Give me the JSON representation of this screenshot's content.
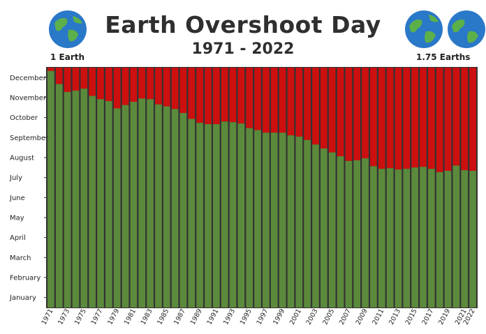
{
  "title": "Earth Overshoot Day",
  "subtitle": "1971 - 2022",
  "left_label": "1 Earth",
  "right_label": "1.75 Earths",
  "icons": {
    "left": "earth-globe-icon",
    "right": "earth-globe-icon"
  },
  "colors": {
    "used": "#5b8a3c",
    "overshoot": "#cc0f0f",
    "globe_water": "#2a78c8",
    "globe_land": "#5bb04a"
  },
  "chart_data": {
    "type": "bar",
    "stacked": true,
    "title": "Earth Overshoot Day",
    "subtitle": "1971 - 2022",
    "y_axis_unit": "day of year",
    "ylim": [
      0,
      365
    ],
    "month_ticks": [
      "January",
      "February",
      "March",
      "April",
      "May",
      "June",
      "July",
      "August",
      "September",
      "October",
      "November",
      "December"
    ],
    "x_tick_labels": [
      "1971",
      "1973",
      "1975",
      "1977",
      "1979",
      "1981",
      "1983",
      "1985",
      "1987",
      "1989",
      "1991",
      "1993",
      "1995",
      "1997",
      "1999",
      "2001",
      "2003",
      "2005",
      "2007",
      "2009",
      "2011",
      "2013",
      "2015",
      "2017",
      "2019",
      "2021",
      "2022"
    ],
    "categories": [
      1971,
      1972,
      1973,
      1974,
      1975,
      1976,
      1977,
      1978,
      1979,
      1980,
      1981,
      1982,
      1983,
      1984,
      1985,
      1986,
      1987,
      1988,
      1989,
      1990,
      1991,
      1992,
      1993,
      1994,
      1995,
      1996,
      1997,
      1998,
      1999,
      2000,
      2001,
      2002,
      2003,
      2004,
      2005,
      2006,
      2007,
      2008,
      2009,
      2010,
      2011,
      2012,
      2013,
      2014,
      2015,
      2016,
      2017,
      2018,
      2019,
      2020,
      2021,
      2022
    ],
    "series": [
      {
        "values": [
          360,
          340,
          328,
          330,
          333,
          322,
          317,
          314,
          303,
          308,
          313,
          318,
          317,
          309,
          306,
          302,
          296,
          287,
          281,
          279,
          279,
          283,
          282,
          280,
          273,
          270,
          266,
          266,
          266,
          262,
          260,
          255,
          248,
          242,
          236,
          230,
          223,
          224,
          227,
          215,
          211,
          212,
          210,
          211,
          213,
          214,
          211,
          206,
          208,
          216,
          209,
          208
        ]
      },
      {
        "values": [
          5,
          25,
          37,
          35,
          32,
          43,
          48,
          51,
          62,
          57,
          52,
          47,
          48,
          56,
          59,
          63,
          69,
          78,
          84,
          86,
          86,
          82,
          83,
          85,
          92,
          95,
          99,
          99,
          99,
          103,
          105,
          110,
          117,
          123,
          129,
          135,
          142,
          141,
          138,
          150,
          154,
          153,
          155,
          154,
          152,
          151,
          154,
          159,
          157,
          149,
          156,
          157
        ]
      }
    ]
  }
}
